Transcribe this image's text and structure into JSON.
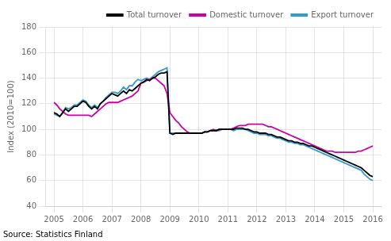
{
  "chart_data": {
    "type": "line",
    "y_label": "Index (2010=100)",
    "source": "Source: Statistics Finland",
    "x": [
      2005.0,
      2005.1,
      2005.2,
      2005.3,
      2005.4,
      2005.5,
      2005.6,
      2005.7,
      2005.8,
      2005.9,
      2006.0,
      2006.1,
      2006.2,
      2006.3,
      2006.4,
      2006.5,
      2006.6,
      2006.7,
      2006.8,
      2006.9,
      2007.0,
      2007.1,
      2007.2,
      2007.3,
      2007.4,
      2007.5,
      2007.6,
      2007.7,
      2007.8,
      2007.9,
      2008.0,
      2008.1,
      2008.2,
      2008.3,
      2008.4,
      2008.5,
      2008.6,
      2008.7,
      2008.8,
      2008.9,
      2009.0,
      2009.1,
      2009.2,
      2009.3,
      2009.4,
      2009.5,
      2009.6,
      2009.7,
      2009.8,
      2009.9,
      2010.0,
      2010.1,
      2010.2,
      2010.3,
      2010.4,
      2010.5,
      2010.6,
      2010.7,
      2010.8,
      2010.9,
      2011.0,
      2011.1,
      2011.2,
      2011.3,
      2011.4,
      2011.5,
      2011.6,
      2011.7,
      2011.8,
      2011.9,
      2012.0,
      2012.1,
      2012.2,
      2012.3,
      2012.4,
      2012.5,
      2012.6,
      2012.7,
      2012.8,
      2012.9,
      2013.0,
      2013.1,
      2013.2,
      2013.3,
      2013.4,
      2013.5,
      2013.6,
      2013.7,
      2013.8,
      2013.9,
      2014.0,
      2014.1,
      2014.2,
      2014.3,
      2014.4,
      2014.5,
      2014.6,
      2014.7,
      2014.8,
      2014.9,
      2015.0,
      2015.1,
      2015.2,
      2015.3,
      2015.4,
      2015.5,
      2015.6,
      2015.7,
      2015.8,
      2015.9,
      2016.0
    ],
    "series": [
      {
        "name": "Total turnover",
        "color": "#000000",
        "values": [
          113,
          112,
          110,
          113,
          116,
          114,
          116,
          118,
          118,
          120,
          122,
          121,
          118,
          116,
          118,
          116,
          120,
          122,
          124,
          126,
          128,
          127,
          126,
          128,
          130,
          128,
          131,
          130,
          132,
          134,
          136,
          137,
          139,
          138,
          140,
          141,
          143,
          144,
          144,
          145,
          97,
          96,
          97,
          97,
          97,
          97,
          97,
          97,
          97,
          97,
          97,
          97,
          98,
          98,
          99,
          99,
          99,
          100,
          100,
          100,
          100,
          100,
          100,
          101,
          101,
          101,
          100,
          100,
          99,
          98,
          98,
          97,
          97,
          97,
          96,
          96,
          95,
          94,
          94,
          93,
          92,
          91,
          91,
          90,
          90,
          89,
          89,
          88,
          87,
          87,
          86,
          85,
          84,
          83,
          82,
          81,
          80,
          79,
          78,
          77,
          76,
          75,
          74,
          73,
          72,
          71,
          70,
          68,
          66,
          64,
          63
        ]
      },
      {
        "name": "Domestic turnover",
        "color": "#cc00aa",
        "values": [
          121,
          119,
          116,
          114,
          112,
          111,
          111,
          111,
          111,
          111,
          111,
          111,
          111,
          110,
          112,
          114,
          116,
          118,
          120,
          121,
          121,
          121,
          121,
          122,
          123,
          124,
          125,
          126,
          128,
          130,
          136,
          137,
          138,
          139,
          140,
          140,
          138,
          136,
          134,
          128,
          113,
          110,
          107,
          105,
          102,
          100,
          98,
          97,
          97,
          97,
          97,
          97,
          98,
          98,
          99,
          100,
          99,
          100,
          100,
          100,
          100,
          100,
          101,
          102,
          103,
          103,
          103,
          104,
          104,
          104,
          104,
          104,
          104,
          103,
          102,
          102,
          101,
          100,
          99,
          98,
          97,
          96,
          95,
          94,
          93,
          92,
          91,
          90,
          89,
          88,
          87,
          86,
          85,
          84,
          83,
          83,
          83,
          82,
          82,
          82,
          82,
          82,
          82,
          82,
          82,
          83,
          83,
          84,
          85,
          86,
          87
        ]
      },
      {
        "name": "Export turnover",
        "color": "#3399cc",
        "values": [
          112,
          111,
          110,
          113,
          117,
          116,
          117,
          119,
          119,
          121,
          123,
          122,
          119,
          117,
          119,
          117,
          120,
          122,
          125,
          127,
          129,
          129,
          128,
          130,
          133,
          131,
          134,
          134,
          137,
          139,
          138,
          139,
          140,
          139,
          141,
          143,
          145,
          146,
          147,
          148,
          97,
          97,
          97,
          97,
          97,
          97,
          97,
          97,
          97,
          97,
          97,
          97,
          98,
          98,
          99,
          99,
          99,
          99,
          100,
          100,
          100,
          100,
          99,
          100,
          100,
          100,
          100,
          99,
          98,
          97,
          97,
          96,
          96,
          96,
          95,
          95,
          94,
          93,
          93,
          92,
          91,
          90,
          90,
          89,
          89,
          88,
          88,
          87,
          86,
          85,
          84,
          83,
          82,
          81,
          80,
          79,
          78,
          77,
          76,
          75,
          74,
          73,
          72,
          71,
          70,
          69,
          68,
          65,
          63,
          61,
          60
        ]
      }
    ],
    "xlim": [
      2004.7,
      2016.3
    ],
    "xticks": [
      2005,
      2006,
      2007,
      2008,
      2009,
      2010,
      2011,
      2012,
      2013,
      2014,
      2015,
      2016
    ],
    "ylim": [
      40,
      180
    ],
    "yticks": [
      40,
      60,
      80,
      100,
      120,
      140,
      160,
      180
    ],
    "grid": true,
    "legend": "upper right"
  }
}
